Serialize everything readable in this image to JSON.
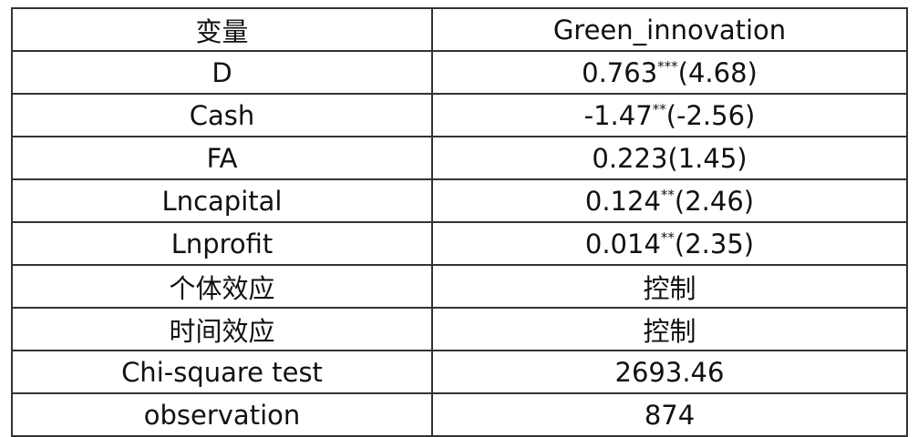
{
  "table": {
    "header": [
      "变量",
      "Green_innovation"
    ],
    "rows": [
      [
        "D",
        {
          "coef": "0.763",
          "stars": "***",
          "t": "(4.68)"
        }
      ],
      [
        "Cash",
        {
          "coef": "-1.47",
          "stars": "**",
          "t": "(-2.56)"
        }
      ],
      [
        "FA",
        "0.223(1.45)"
      ],
      [
        "Lncapital",
        {
          "coef": "0.124",
          "stars": "**",
          "t": "(2.46)"
        }
      ],
      [
        "Lnprofit",
        {
          "coef": "0.014",
          "stars": "**",
          "t": "(2.35)"
        }
      ],
      [
        "个体效应",
        "控制"
      ],
      [
        "时间效应",
        "控制"
      ],
      [
        "Chi-square test",
        "2693.46"
      ],
      [
        "observation",
        "874"
      ]
    ]
  }
}
